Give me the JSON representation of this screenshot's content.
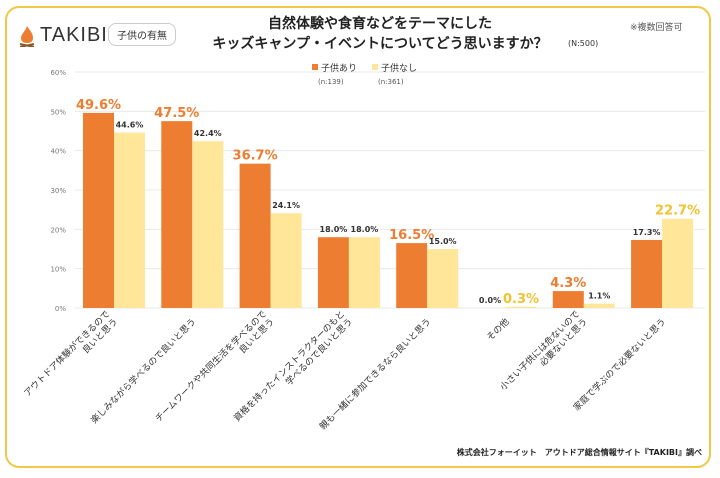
{
  "header": {
    "logo": "TAKIBI",
    "tag": "子供の有無",
    "title_line1": "自然体験や食育などをテーマにした",
    "title_line2": "キッズキャンプ・イベントについてどう思いますか？",
    "sample": "(N:500)",
    "note": "※複数回答可"
  },
  "footer": {
    "credit": "株式会社フォーイット　アウトドア総合情報サイト『TAKIBI』調べ"
  },
  "chart_data": {
    "type": "bar",
    "ylim": [
      0,
      60
    ],
    "yticks": [
      "0%",
      "10%",
      "20%",
      "30%",
      "40%",
      "50%",
      "60%"
    ],
    "grid": true,
    "legend_placement": "top-center",
    "categories": [
      [
        "アウトドア体験ができるので",
        "良いと思う"
      ],
      [
        "楽しみながら学べるので良いと思う"
      ],
      [
        "チームワークや共同生活を学べるので",
        "良いと思う"
      ],
      [
        "資格を持ったインストラクターのもと",
        "学べるので良いと思う"
      ],
      [
        "親も一緒に参加できるなら良いと思う"
      ],
      [
        "その他"
      ],
      [
        "小さい子供には危ないので",
        "必要ないと思う"
      ],
      [
        "家庭で学ぶので必要ないと思う"
      ]
    ],
    "series": [
      {
        "name": "子供あり",
        "sub": "(n:139)",
        "color": "#ed7d31",
        "highlight": "#ed7d31",
        "values": [
          49.6,
          47.5,
          36.7,
          18.0,
          16.5,
          0.0,
          4.3,
          17.3
        ]
      },
      {
        "name": "子供なし",
        "sub": "(n:361)",
        "color": "#ffe699",
        "highlight": "#f2c230",
        "values": [
          44.6,
          42.4,
          24.1,
          18.0,
          15.0,
          0.3,
          1.1,
          22.7
        ]
      }
    ]
  }
}
